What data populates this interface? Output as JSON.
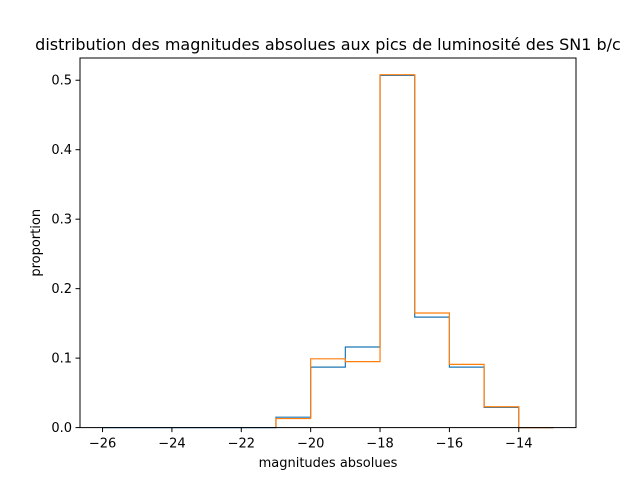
{
  "chart_data": {
    "type": "step",
    "title": "distribution des magnitudes absolues aux pics de luminosité des SN1 b/c",
    "xlabel": "magnitudes absolues",
    "ylabel": "proportion",
    "xlim": [
      -26.65,
      -12.35
    ],
    "ylim": [
      0,
      0.532
    ],
    "x_ticks": [
      -26,
      -24,
      -22,
      -20,
      -18,
      -16,
      -14
    ],
    "x_tick_labels": [
      "−26",
      "−24",
      "−22",
      "−20",
      "−18",
      "−16",
      "−14"
    ],
    "y_ticks": [
      0.0,
      0.1,
      0.2,
      0.3,
      0.4,
      0.5
    ],
    "y_tick_labels": [
      "0.0",
      "0.1",
      "0.2",
      "0.3",
      "0.4",
      "0.5"
    ],
    "grid": false,
    "legend": "none",
    "bin_edges": [
      -26,
      -25,
      -24,
      -23,
      -22,
      -21,
      -20,
      -19,
      -18,
      -17,
      -16,
      -15,
      -14,
      -13
    ],
    "series": [
      {
        "color": "#1f77b4",
        "values": [
          0,
          0,
          0,
          0,
          0,
          0.015,
          0.087,
          0.116,
          0.507,
          0.159,
          0.087,
          0.029,
          0,
          0
        ]
      },
      {
        "color": "#ff7f0e",
        "values": [
          null,
          null,
          null,
          null,
          null,
          0.013,
          0.099,
          0.095,
          0.508,
          0.165,
          0.091,
          0.03,
          0,
          null
        ]
      }
    ]
  }
}
